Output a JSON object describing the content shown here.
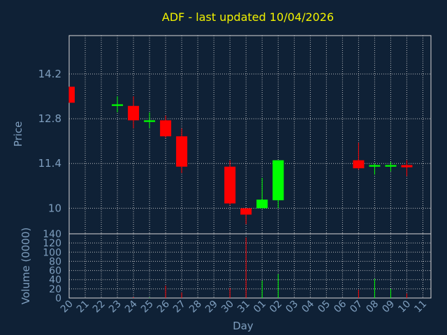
{
  "chart_data": {
    "type": "candlestick",
    "title": "ADF - last updated 10/04/2026",
    "xlabel": "Day",
    "days": [
      "20",
      "21",
      "22",
      "23",
      "24",
      "25",
      "26",
      "27",
      "28",
      "29",
      "30",
      "31",
      "01",
      "02",
      "03",
      "04",
      "05",
      "06",
      "07",
      "08",
      "09",
      "10",
      "11"
    ],
    "price_panel": {
      "ylabel": "Price",
      "ylim": [
        9.2,
        15.4
      ],
      "yticks": [
        10,
        11.4,
        12.8,
        14.2
      ],
      "ytick_labels": [
        "10",
        "11.4",
        "12.8",
        "14.2"
      ],
      "grid": true
    },
    "volume_panel": {
      "ylabel": "Volume (0000)",
      "ylim": [
        0,
        140
      ],
      "yticks": [
        0,
        20,
        40,
        60,
        80,
        100,
        120,
        140
      ],
      "ytick_labels": [
        "0",
        "20",
        "40",
        "60",
        "80",
        "100",
        "120",
        "140"
      ],
      "grid": true
    },
    "colors": {
      "up": "#00ff00",
      "down": "#ff0000",
      "background": "#0f2136",
      "text": "#7f9fbf",
      "title": "#f2f200"
    },
    "candles": [
      {
        "day": "20",
        "open": 13.8,
        "high": 13.8,
        "low": 13.3,
        "close": 13.3,
        "volume": 0
      },
      {
        "day": "23",
        "open": 13.2,
        "high": 13.5,
        "low": 13.0,
        "close": 13.25,
        "volume": 0
      },
      {
        "day": "24",
        "open": 13.2,
        "high": 13.5,
        "low": 12.5,
        "close": 12.75,
        "volume": 2
      },
      {
        "day": "25",
        "open": 12.7,
        "high": 13.0,
        "low": 12.5,
        "close": 12.75,
        "volume": 1
      },
      {
        "day": "26",
        "open": 12.75,
        "high": 12.9,
        "low": 12.2,
        "close": 12.25,
        "volume": 27
      },
      {
        "day": "27",
        "open": 12.25,
        "high": 12.5,
        "low": 11.1,
        "close": 11.3,
        "volume": 12
      },
      {
        "day": "30",
        "open": 11.3,
        "high": 11.5,
        "low": 10.1,
        "close": 10.15,
        "volume": 22
      },
      {
        "day": "31",
        "open": 10.0,
        "high": 10.0,
        "low": 9.5,
        "close": 9.8,
        "volume": 132
      },
      {
        "day": "01",
        "open": 10.0,
        "high": 10.95,
        "low": 10.0,
        "close": 10.27,
        "volume": 38
      },
      {
        "day": "02",
        "open": 10.25,
        "high": 11.5,
        "low": 10.0,
        "close": 11.5,
        "volume": 52
      },
      {
        "day": "07",
        "open": 11.5,
        "high": 12.05,
        "low": 11.2,
        "close": 11.25,
        "volume": 18
      },
      {
        "day": "08",
        "open": 11.3,
        "high": 11.4,
        "low": 11.05,
        "close": 11.35,
        "volume": 42
      },
      {
        "day": "09",
        "open": 11.3,
        "high": 11.45,
        "low": 11.15,
        "close": 11.35,
        "volume": 20
      },
      {
        "day": "10",
        "open": 11.35,
        "high": 11.5,
        "low": 11.0,
        "close": 11.28,
        "volume": 10
      }
    ]
  }
}
